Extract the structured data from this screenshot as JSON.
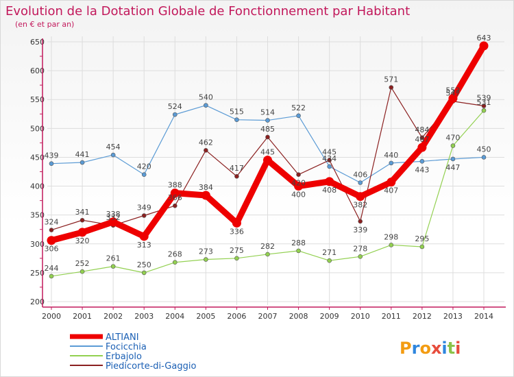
{
  "chart_data": {
    "type": "line",
    "title": "Evolution de la Dotation Globale de Fonctionnement par Habitant",
    "subtitle": "(en € et par an)",
    "x": [
      2000,
      2001,
      2002,
      2003,
      2004,
      2005,
      2006,
      2007,
      2008,
      2009,
      2010,
      2011,
      2012,
      2013,
      2014
    ],
    "ylim": [
      200,
      650
    ],
    "yticks": [
      200,
      250,
      300,
      350,
      400,
      450,
      500,
      550,
      600,
      650
    ],
    "grid": true,
    "legend_position": "bottom-left",
    "series": [
      {
        "name": "ALTIANI",
        "color": "#ee0000",
        "width": 9,
        "values": [
          306,
          320,
          338,
          313,
          388,
          384,
          336,
          445,
          400,
          408,
          382,
          407,
          467,
          552,
          643
        ],
        "labels": [
          "306",
          "320",
          "338",
          "313",
          "388",
          "384",
          "336",
          "445",
          "400",
          "408",
          "382",
          "407",
          "467",
          "552",
          "643"
        ]
      },
      {
        "name": "Focicchia",
        "color": "#5b9bd5",
        "width": 1.2,
        "values": [
          439,
          441,
          454,
          420,
          524,
          540,
          515,
          514,
          522,
          434,
          406,
          440,
          443,
          447,
          450
        ],
        "labels": [
          "439",
          "441",
          "454",
          "420",
          "524",
          "540",
          "515",
          "514",
          "522",
          "434",
          "406",
          "440",
          "443",
          "447",
          "450"
        ]
      },
      {
        "name": "Erbajolo",
        "color": "#92d050",
        "width": 1.2,
        "values": [
          244,
          252,
          261,
          250,
          268,
          273,
          275,
          282,
          288,
          271,
          278,
          298,
          295,
          470,
          531
        ],
        "labels": [
          "244",
          "252",
          "261",
          "250",
          "268",
          "273",
          "275",
          "282",
          "288",
          "271",
          "278",
          "298",
          "295",
          "470",
          "531"
        ]
      },
      {
        "name": "Piedicorte-di-Gaggio",
        "color": "#8b2020",
        "width": 1.2,
        "values": [
          324,
          341,
          332,
          349,
          366,
          462,
          417,
          485,
          420,
          445,
          339,
          571,
          484,
          547,
          539
        ],
        "labels": [
          "324",
          "341",
          "332",
          "349",
          "366",
          "462",
          "417",
          "485",
          "420",
          "445",
          "339",
          "571",
          "484",
          "547",
          "539"
        ]
      }
    ]
  },
  "logo": {
    "text": "Proxiti"
  }
}
